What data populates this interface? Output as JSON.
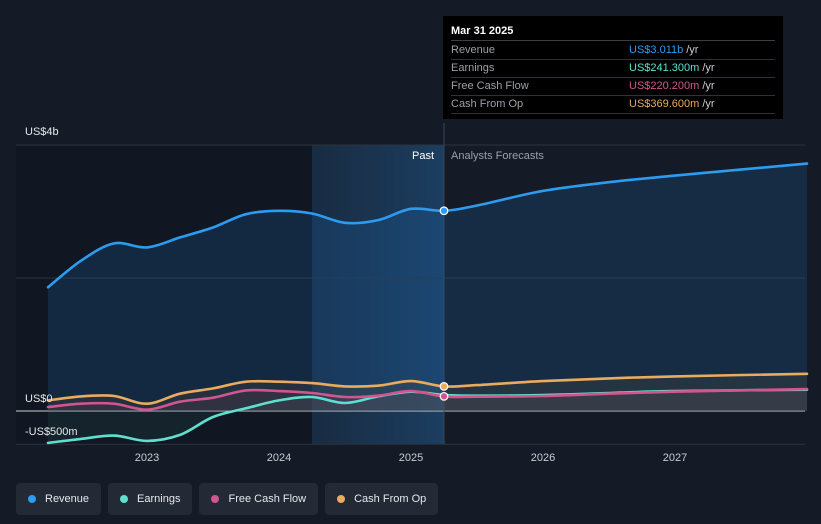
{
  "chart_data": {
    "type": "line",
    "y_axis": {
      "top_label": "US$4b",
      "zero_label": "US$0",
      "bottom_label": "-US$500m",
      "ylim": [
        -500,
        4000
      ]
    },
    "x_ticks": [
      "2023",
      "2024",
      "2025",
      "2026",
      "2027"
    ],
    "region_labels": {
      "past": "Past",
      "forecast": "Analysts Forecasts"
    },
    "series": [
      {
        "name": "Revenue",
        "color": "#2d9cf0",
        "points": [
          [
            2022.25,
            1860
          ],
          [
            2022.5,
            2260
          ],
          [
            2022.75,
            2520
          ],
          [
            2023.0,
            2460
          ],
          [
            2023.25,
            2610
          ],
          [
            2023.5,
            2760
          ],
          [
            2023.75,
            2960
          ],
          [
            2024.0,
            3010
          ],
          [
            2024.25,
            2970
          ],
          [
            2024.5,
            2830
          ],
          [
            2024.75,
            2870
          ],
          [
            2025.0,
            3040
          ],
          [
            2025.25,
            3011
          ],
          [
            2025.5,
            3090
          ],
          [
            2026.0,
            3310
          ],
          [
            2026.5,
            3440
          ],
          [
            2027.0,
            3540
          ],
          [
            2028.0,
            3720
          ]
        ]
      },
      {
        "name": "Earnings",
        "color": "#5fe0cf",
        "points": [
          [
            2022.25,
            -480
          ],
          [
            2022.5,
            -420
          ],
          [
            2022.75,
            -370
          ],
          [
            2023.0,
            -450
          ],
          [
            2023.25,
            -360
          ],
          [
            2023.5,
            -90
          ],
          [
            2023.75,
            40
          ],
          [
            2024.0,
            160
          ],
          [
            2024.25,
            210
          ],
          [
            2024.5,
            120
          ],
          [
            2024.75,
            220
          ],
          [
            2025.0,
            290
          ],
          [
            2025.25,
            241.3
          ],
          [
            2025.5,
            230
          ],
          [
            2026.0,
            240
          ],
          [
            2026.5,
            270
          ],
          [
            2027.0,
            300
          ],
          [
            2028.0,
            320
          ]
        ]
      },
      {
        "name": "Free Cash Flow",
        "color": "#d2558f",
        "points": [
          [
            2022.25,
            60
          ],
          [
            2022.5,
            110
          ],
          [
            2022.75,
            110
          ],
          [
            2023.0,
            20
          ],
          [
            2023.25,
            140
          ],
          [
            2023.5,
            200
          ],
          [
            2023.75,
            310
          ],
          [
            2024.0,
            300
          ],
          [
            2024.25,
            270
          ],
          [
            2024.5,
            210
          ],
          [
            2024.75,
            230
          ],
          [
            2025.0,
            300
          ],
          [
            2025.25,
            220.2
          ],
          [
            2025.5,
            215
          ],
          [
            2026.0,
            225
          ],
          [
            2026.5,
            260
          ],
          [
            2027.0,
            290
          ],
          [
            2028.0,
            330
          ]
        ]
      },
      {
        "name": "Cash From Op",
        "color": "#e9ab5f",
        "points": [
          [
            2022.25,
            160
          ],
          [
            2022.5,
            220
          ],
          [
            2022.75,
            225
          ],
          [
            2023.0,
            110
          ],
          [
            2023.25,
            260
          ],
          [
            2023.5,
            340
          ],
          [
            2023.75,
            440
          ],
          [
            2024.0,
            440
          ],
          [
            2024.25,
            420
          ],
          [
            2024.5,
            370
          ],
          [
            2024.75,
            380
          ],
          [
            2025.0,
            450
          ],
          [
            2025.25,
            369.6
          ],
          [
            2025.5,
            390
          ],
          [
            2026.0,
            450
          ],
          [
            2026.5,
            490
          ],
          [
            2027.0,
            520
          ],
          [
            2028.0,
            560
          ]
        ]
      }
    ],
    "forecast_start": 2025.25,
    "shaded_region_start": 2024.25,
    "grid": true,
    "legend_position": "bottom-left"
  },
  "tooltip": {
    "date": "Mar 31 2025",
    "unit": "/yr",
    "rows": [
      {
        "name": "Revenue",
        "value": "US$3.011b",
        "color": "#2d9cf0"
      },
      {
        "name": "Earnings",
        "value": "US$241.300m",
        "color": "#5fe0cf"
      },
      {
        "name": "Free Cash Flow",
        "value": "US$220.200m",
        "color": "#d2558f"
      },
      {
        "name": "Cash From Op",
        "value": "US$369.600m",
        "color": "#e9ab5f"
      }
    ]
  },
  "legend": [
    {
      "label": "Revenue",
      "color": "#2d9cf0"
    },
    {
      "label": "Earnings",
      "color": "#5fe0cf"
    },
    {
      "label": "Free Cash Flow",
      "color": "#d2558f"
    },
    {
      "label": "Cash From Op",
      "color": "#e9ab5f"
    }
  ]
}
